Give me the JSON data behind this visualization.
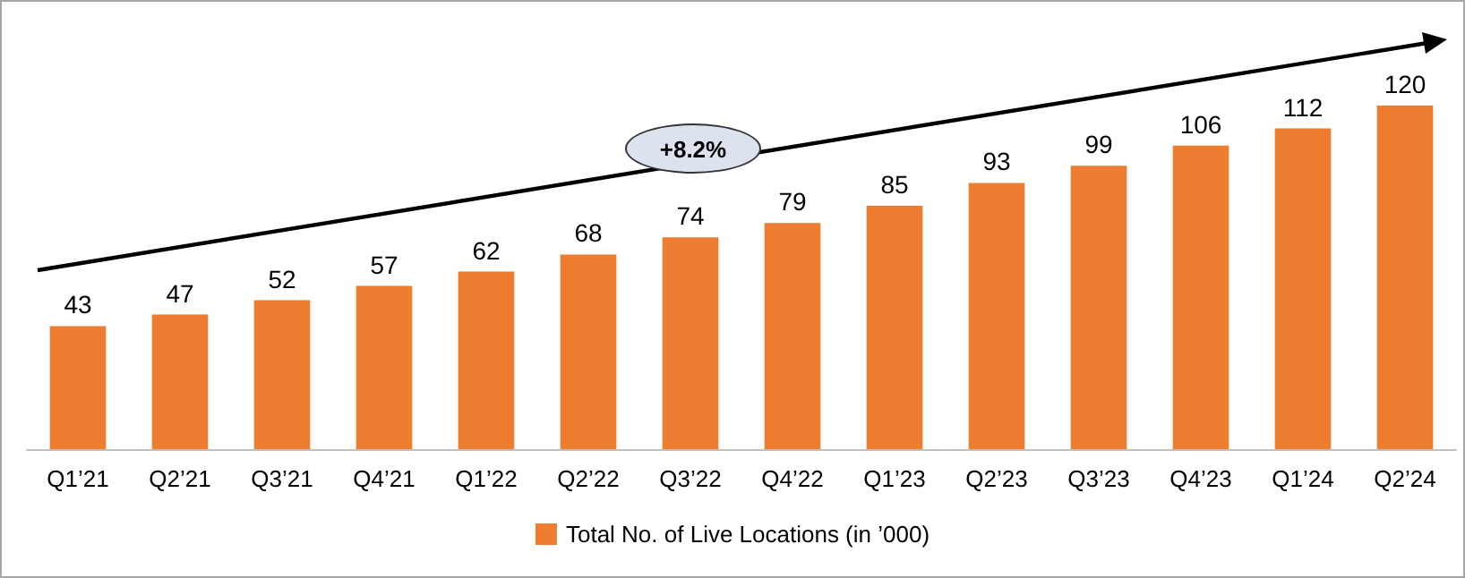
{
  "chart_data": {
    "type": "bar",
    "categories": [
      "Q1’21",
      "Q2’21",
      "Q3’21",
      "Q4’21",
      "Q1’22",
      "Q2’22",
      "Q3’22",
      "Q4’22",
      "Q1’23",
      "Q2’23",
      "Q3’23",
      "Q4’23",
      "Q1’24",
      "Q2’24"
    ],
    "series": [
      {
        "name": "Total No. of Live Locations (in ’000)",
        "color": "#ed7d31",
        "values": [
          43,
          47,
          52,
          57,
          62,
          68,
          74,
          79,
          85,
          93,
          99,
          106,
          112,
          120
        ]
      }
    ],
    "data_labels": true,
    "legend": "bottom",
    "tick_labels": "x",
    "annotations": [
      "+8.2%"
    ]
  }
}
